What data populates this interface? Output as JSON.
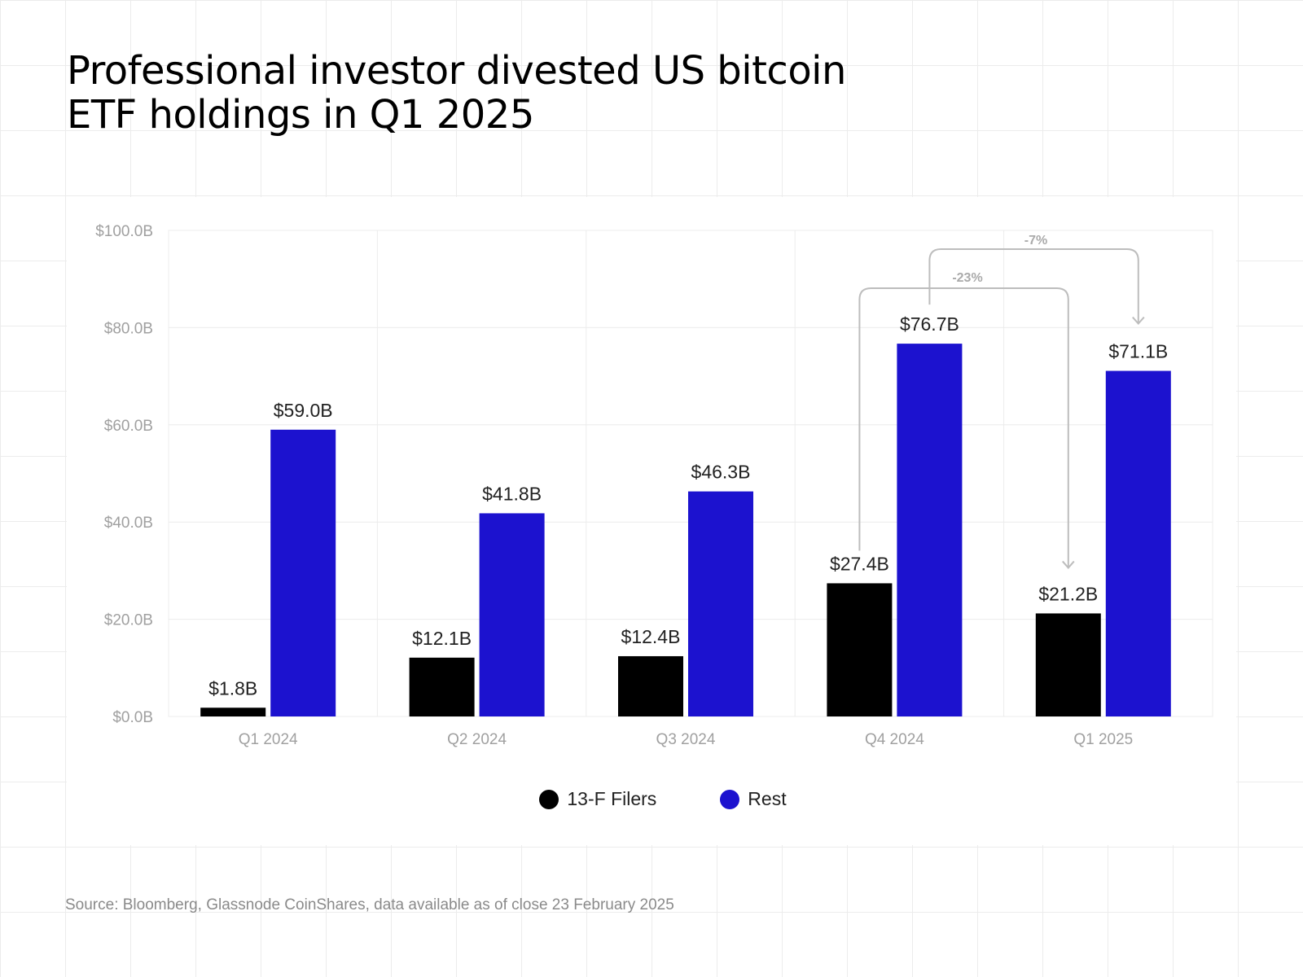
{
  "title_lines": [
    "Professional investor divested US bitcoin",
    "ETF holdings in Q1 2025"
  ],
  "source": "Source: Bloomberg, Glassnode CoinShares, data available as of close 23 February 2025",
  "chart_data": {
    "type": "bar",
    "title": "Professional investor divested US bitcoin ETF holdings in Q1 2025",
    "categories": [
      "Q1 2024",
      "Q2 2024",
      "Q3 2024",
      "Q4 2024",
      "Q1 2025"
    ],
    "series": [
      {
        "name": "13-F Filers",
        "color": "#000000",
        "values": [
          1.8,
          12.1,
          12.4,
          27.4,
          21.2
        ],
        "labels": [
          "$1.8B",
          "$12.1B",
          "$12.4B",
          "$27.4B",
          "$21.2B"
        ]
      },
      {
        "name": "Rest",
        "color": "#1c12cf",
        "values": [
          59.0,
          41.8,
          46.3,
          76.7,
          71.1
        ],
        "labels": [
          "$59.0B",
          "$41.8B",
          "$46.3B",
          "$76.7B",
          "$71.1B"
        ]
      }
    ],
    "ylim": [
      0,
      100
    ],
    "yticks": [
      0,
      20,
      40,
      60,
      80,
      100
    ],
    "ytick_labels": [
      "$0.0B",
      "$20.0B",
      "$40.0B",
      "$60.0B",
      "$80.0B",
      "$100.0B"
    ],
    "grid": true,
    "legend_position": "bottom-center",
    "annotations": [
      {
        "text": "-23%",
        "from_category": "Q4 2024",
        "from_series": "13-F Filers",
        "to_category": "Q1 2025",
        "to_series": "13-F Filers"
      },
      {
        "text": "-7%",
        "from_category": "Q4 2024",
        "from_series": "Rest",
        "to_category": "Q1 2025",
        "to_series": "Rest"
      }
    ]
  }
}
